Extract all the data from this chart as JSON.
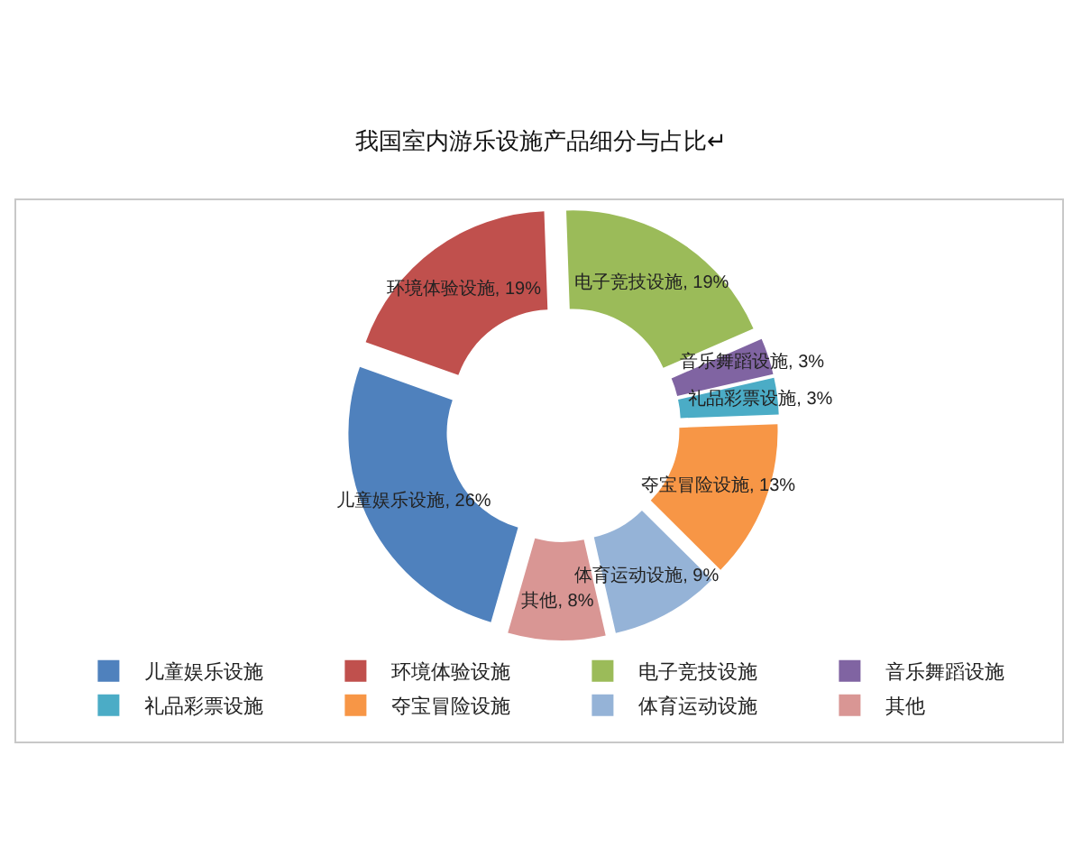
{
  "chart_data": {
    "type": "donut",
    "title": "我国室内游乐设施产品细分与占比↵",
    "categories": [
      "儿童娱乐设施",
      "环境体验设施",
      "电子竞技设施",
      "音乐舞蹈设施",
      "礼品彩票设施",
      "夺宝冒险设施",
      "体育运动设施",
      "其他"
    ],
    "values": [
      26,
      19,
      19,
      3,
      3,
      13,
      9,
      8
    ],
    "colors": [
      "#4f81bd",
      "#c0504d",
      "#9bbb59",
      "#8064a2",
      "#4bacc6",
      "#f79646",
      "#95b3d7",
      "#d99694"
    ],
    "value_labels": [
      "儿童娱乐设施, 26%",
      "环境体验设施, 19%",
      "电子竞技设施, 19%",
      "音乐舞蹈设施, 3%",
      "礼品彩票设施, 3%",
      "夺宝冒险设施, 13%",
      "体育运动设施, 9%",
      "其他, 8%"
    ],
    "legend": "bottom"
  }
}
